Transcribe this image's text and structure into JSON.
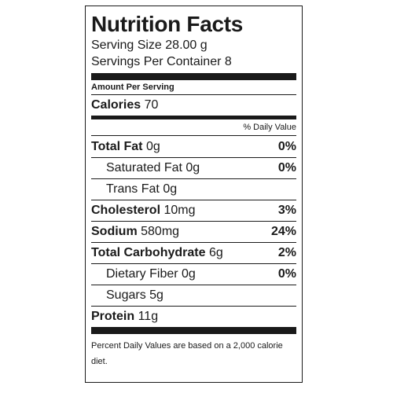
{
  "label": {
    "title": "Nutrition Facts",
    "serving_size": "Serving Size 28.00 g",
    "servings_per_container": "Servings Per Container 8",
    "amount_per_serving": "Amount Per Serving",
    "calories_label": "Calories",
    "calories_value": "70",
    "daily_value_header": "% Daily Value",
    "nutrients": [
      {
        "name": "Total Fat",
        "amount": "0g",
        "daily_value": "0%",
        "bold": true,
        "indent": false
      },
      {
        "name": "Saturated Fat",
        "amount": "0g",
        "daily_value": "0%",
        "bold": false,
        "indent": true
      },
      {
        "name": "Trans Fat",
        "amount": "0g",
        "daily_value": "",
        "bold": false,
        "indent": true
      },
      {
        "name": "Cholesterol",
        "amount": "10mg",
        "daily_value": "3%",
        "bold": true,
        "indent": false
      },
      {
        "name": "Sodium",
        "amount": "580mg",
        "daily_value": "24%",
        "bold": true,
        "indent": false
      },
      {
        "name": "Total Carbohydrate",
        "amount": "6g",
        "daily_value": "2%",
        "bold": true,
        "indent": false
      },
      {
        "name": "Dietary Fiber",
        "amount": "0g",
        "daily_value": "0%",
        "bold": false,
        "indent": true
      },
      {
        "name": "Sugars",
        "amount": "5g",
        "daily_value": "",
        "bold": false,
        "indent": true
      },
      {
        "name": "Protein",
        "amount": "11g",
        "daily_value": "",
        "bold": true,
        "indent": false
      }
    ],
    "footnote": "Percent Daily Values are based on a 2,000 calorie diet."
  }
}
